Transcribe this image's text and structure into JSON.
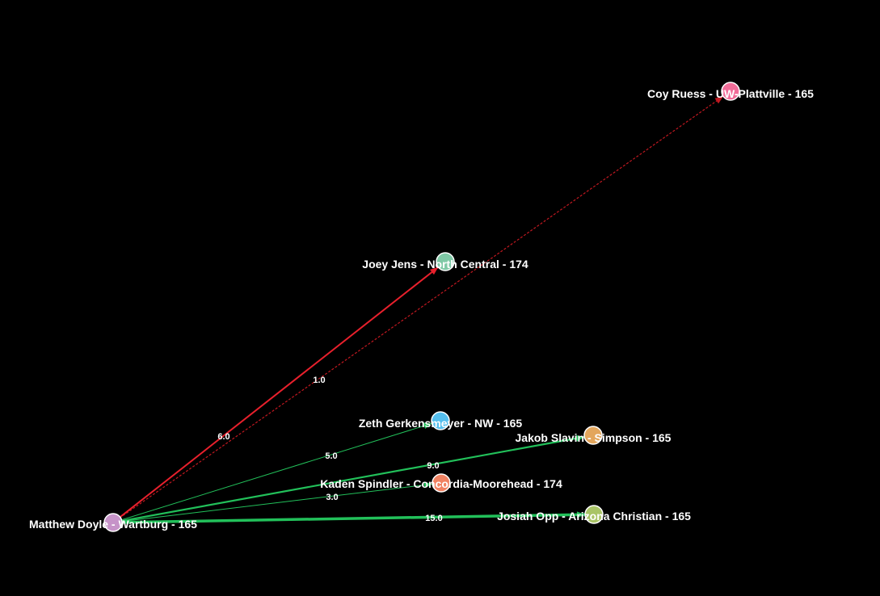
{
  "nodes": [
    {
      "id": "doyle",
      "label": "Matthew Doyle - Wartburg - 165",
      "color": "#c693c8"
    },
    {
      "id": "ruess",
      "label": "Coy Ruess - UW-Plattville - 165",
      "color": "#f06c98"
    },
    {
      "id": "jens",
      "label": "Joey Jens - North Central - 174",
      "color": "#7fc9a6"
    },
    {
      "id": "gerkensmeyer",
      "label": "Zeth Gerkensmeyer - NW - 165",
      "color": "#55bfee"
    },
    {
      "id": "slavin",
      "label": "Jakob Slavin - Simpson - 165",
      "color": "#e3a65c"
    },
    {
      "id": "spindler",
      "label": "Kaden Spindler - Concordia-Moorehead - 174",
      "color": "#f08262"
    },
    {
      "id": "opp",
      "label": "Josiah Opp - Arizona Christian - 165",
      "color": "#a9c466"
    }
  ],
  "edges": [
    {
      "from": "doyle",
      "to": "ruess",
      "label": "1.0",
      "color": "#c01820"
    },
    {
      "from": "doyle",
      "to": "jens",
      "label": "6.0",
      "color": "#e8202c"
    },
    {
      "from": "doyle",
      "to": "gerkensmeyer",
      "label": "5.0",
      "color": "#22c05a"
    },
    {
      "from": "doyle",
      "to": "slavin",
      "label": "9.0",
      "color": "#22c05a"
    },
    {
      "from": "doyle",
      "to": "spindler",
      "label": "3.0",
      "color": "#22c05a"
    },
    {
      "from": "doyle",
      "to": "opp",
      "label": "15.0",
      "color": "#22c05a"
    }
  ]
}
